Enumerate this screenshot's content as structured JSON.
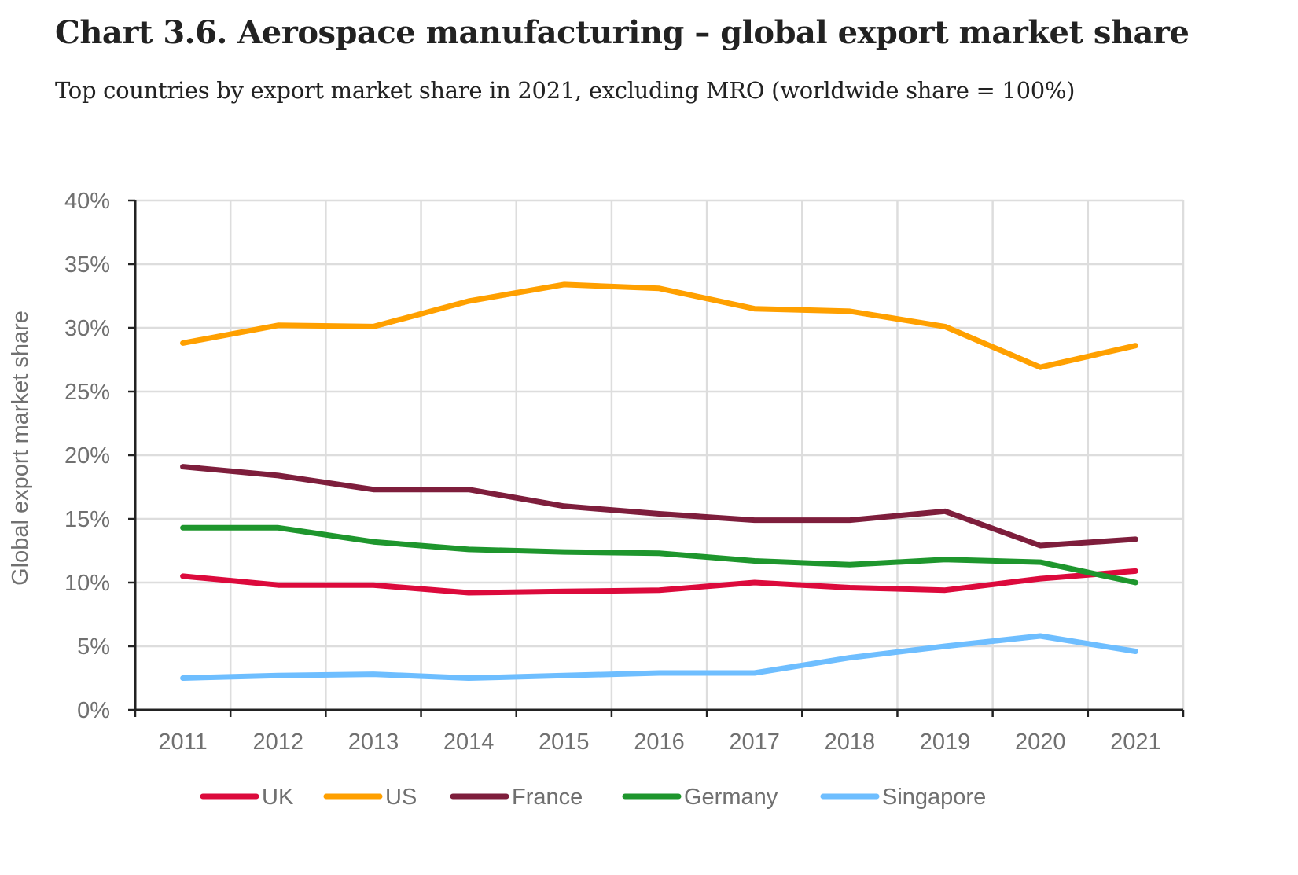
{
  "header": {
    "title": "Chart 3.6. Aerospace manufacturing – global export market share",
    "subtitle": "Top countries by export market share in 2021, excluding MRO (worldwide share = 100%)"
  },
  "chart_data": {
    "type": "line",
    "title": "Chart 3.6. Aerospace manufacturing – global export market share",
    "subtitle": "Top countries by export market share in 2021, excluding MRO (worldwide share = 100%)",
    "xlabel": "",
    "ylabel": "Global export market share",
    "x": [
      "2011",
      "2012",
      "2013",
      "2014",
      "2015",
      "2016",
      "2017",
      "2018",
      "2019",
      "2020",
      "2021"
    ],
    "ylim": [
      0,
      40
    ],
    "yticks": [
      0,
      5,
      10,
      15,
      20,
      25,
      30,
      35,
      40
    ],
    "ytick_labels": [
      "0%",
      "5%",
      "10%",
      "15%",
      "20%",
      "25%",
      "30%",
      "35%",
      "40%"
    ],
    "grid": true,
    "legend_position": "bottom",
    "series": [
      {
        "name": "UK",
        "color": "#DC0A3C",
        "values": [
          10.5,
          9.8,
          9.8,
          9.2,
          9.3,
          9.4,
          10.0,
          9.6,
          9.4,
          10.3,
          10.9
        ]
      },
      {
        "name": "US",
        "color": "#FFA000",
        "values": [
          28.8,
          30.2,
          30.1,
          32.1,
          33.4,
          33.1,
          31.5,
          31.3,
          30.1,
          26.9,
          28.6
        ]
      },
      {
        "name": "France",
        "color": "#7E1E3C",
        "values": [
          19.1,
          18.4,
          17.3,
          17.3,
          16.0,
          15.4,
          14.9,
          14.9,
          15.6,
          12.9,
          13.4
        ]
      },
      {
        "name": "Germany",
        "color": "#1E962D",
        "values": [
          14.3,
          14.3,
          13.2,
          12.6,
          12.4,
          12.3,
          11.7,
          11.4,
          11.8,
          11.6,
          10.0
        ]
      },
      {
        "name": "Singapore",
        "color": "#6EBEFF",
        "values": [
          2.5,
          2.7,
          2.8,
          2.5,
          2.7,
          2.9,
          2.9,
          4.1,
          5.0,
          5.8,
          4.6
        ]
      }
    ]
  }
}
